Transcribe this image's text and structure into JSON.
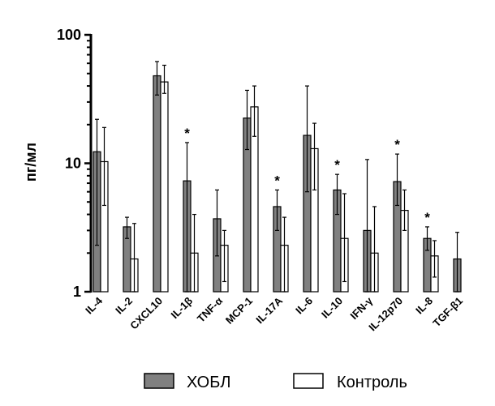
{
  "chart_data": {
    "type": "bar",
    "scale": "log",
    "title": "",
    "xlabel": "",
    "ylabel": "пг/мл",
    "ylim": [
      1,
      100
    ],
    "yticks": [
      {
        "value": 1,
        "label": "1"
      },
      {
        "value": 10,
        "label": "10"
      },
      {
        "value": 100,
        "label": "100"
      }
    ],
    "categories": [
      "IL-4",
      "IL-2",
      "CXCL10",
      "IL-1β",
      "TNF-α",
      "MCP-1",
      "IL-17A",
      "IL-6",
      "IL-10",
      "IFN-γ",
      "IL-12p70",
      "IL-8",
      "TGF-β1"
    ],
    "series": [
      {
        "name": "ХОБЛ",
        "color": "#808080",
        "values": [
          12.3,
          3.2,
          48,
          7.3,
          3.7,
          22.5,
          4.6,
          16.5,
          6.2,
          3.0,
          7.2,
          2.6,
          1.8
        ],
        "error_low": [
          2.3,
          2.6,
          34,
          1.0,
          1.9,
          12.8,
          3.0,
          6.0,
          4.0,
          1.0,
          4.7,
          2.1,
          1.0
        ],
        "error_high": [
          22,
          3.8,
          62,
          14.5,
          6.2,
          37,
          6.2,
          40,
          8.2,
          10.7,
          11.8,
          3.2,
          2.9
        ]
      },
      {
        "name": "Контроль",
        "color": "#ffffff",
        "values": [
          10.3,
          1.8,
          43,
          2.0,
          2.3,
          27.5,
          2.3,
          13,
          2.6,
          2.0,
          4.3,
          1.9,
          null
        ],
        "error_low": [
          4.7,
          1.0,
          35,
          1.0,
          1.2,
          16.2,
          1.0,
          6.2,
          1.2,
          1.0,
          3.0,
          1.3,
          null
        ],
        "error_high": [
          19,
          3.4,
          58,
          4.0,
          3.0,
          40,
          3.8,
          20.5,
          5.8,
          4.6,
          6.2,
          2.5,
          null
        ]
      }
    ],
    "annotations": [
      {
        "category": "IL-1β",
        "text": "*"
      },
      {
        "category": "IL-17A",
        "text": "*"
      },
      {
        "category": "IL-10",
        "text": "*"
      },
      {
        "category": "IL-12p70",
        "text": "*"
      },
      {
        "category": "IL-8",
        "text": "*"
      }
    ],
    "legend": {
      "position": "bottom",
      "items": [
        "ХОБЛ",
        "Контроль"
      ]
    }
  }
}
